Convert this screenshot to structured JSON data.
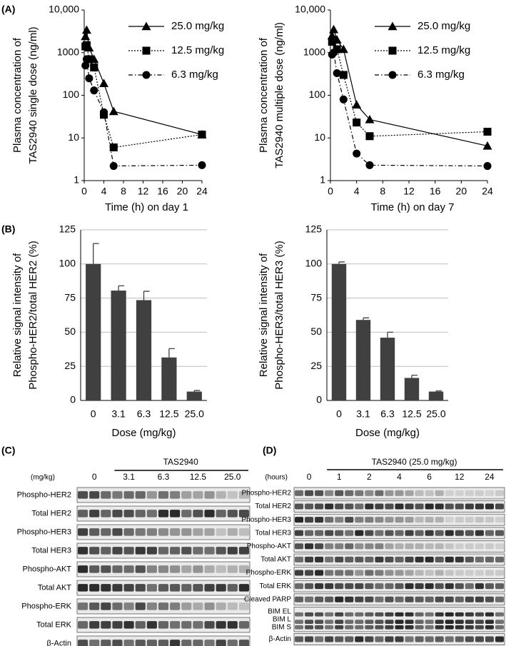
{
  "panel_labels": [
    "(A)",
    "(B)",
    "(C)",
    "(D)"
  ],
  "chart_data": [
    {
      "type": "line",
      "ylabel": [
        "Plasma concentration of",
        "TAS2940 single dose (ng/ml)"
      ],
      "xlabel": "Time (h) on day 1",
      "x": [
        0.25,
        0.5,
        1,
        2,
        4,
        6,
        24
      ],
      "xlim": [
        0,
        24
      ],
      "xticks": [
        0,
        4,
        8,
        12,
        16,
        20,
        24
      ],
      "ylim": [
        1,
        10000
      ],
      "yticks": [
        1,
        10,
        100,
        1000,
        {
          "value": 10000,
          "label": "10,000"
        }
      ],
      "log_y": true,
      "series": [
        {
          "name": "25.0 mg/kg",
          "color": "#000000",
          "marker": "triangle",
          "dash": "solid",
          "values": [
            2400,
            3400,
            1300,
            700,
            190,
            42,
            12
          ]
        },
        {
          "name": "12.5 mg/kg",
          "color": "#000000",
          "marker": "square",
          "dash": "dotted",
          "values": [
            1400,
            1500,
            700,
            450,
            35,
            6,
            12
          ]
        },
        {
          "name": "6.3 mg/kg",
          "color": "#000000",
          "marker": "circle",
          "dash": "dashdot",
          "values": [
            500,
            700,
            250,
            130,
            40,
            2.2,
            2.3
          ]
        }
      ]
    },
    {
      "type": "line",
      "ylabel": [
        "Plasma concentration of",
        "TAS2940 multiple dose (ng/ml)"
      ],
      "xlabel": "Time (h) on day 7",
      "x": [
        0.25,
        0.5,
        1,
        2,
        4,
        6,
        24
      ],
      "xlim": [
        0,
        24
      ],
      "xticks": [
        0,
        4,
        8,
        12,
        16,
        20,
        24
      ],
      "ylim": [
        1,
        10000
      ],
      "yticks": [
        1,
        10,
        100,
        1000,
        {
          "value": 10000,
          "label": "10,000"
        }
      ],
      "log_y": true,
      "series": [
        {
          "name": "25.0 mg/kg",
          "color": "#000000",
          "marker": "triangle",
          "dash": "solid",
          "values": [
            2500,
            3500,
            2000,
            1200,
            60,
            27,
            6.5
          ]
        },
        {
          "name": "12.5 mg/kg",
          "color": "#000000",
          "marker": "square",
          "dash": "dotted",
          "values": [
            1800,
            2000,
            1200,
            300,
            23,
            11,
            14
          ]
        },
        {
          "name": "6.3 mg/kg",
          "color": "#000000",
          "marker": "circle",
          "dash": "dashdot",
          "values": [
            900,
            1000,
            330,
            80,
            4.3,
            2.3,
            2.2
          ]
        }
      ]
    },
    {
      "type": "bar",
      "ylabel": [
        "Relative signal intensity of",
        "Phospho-HER2/total HER2 (%)"
      ],
      "xlabel": "Dose (mg/kg)",
      "categories": [
        "0",
        "3.1",
        "6.3",
        "12.5",
        "25.0"
      ],
      "values": [
        100,
        80.5,
        73.5,
        31.5,
        6.5
      ],
      "errors": [
        15,
        3.5,
        6.5,
        6.5,
        0.8
      ],
      "color": "#404040",
      "ylim": [
        0,
        125
      ],
      "yticks": [
        0,
        25,
        50,
        75,
        100,
        125
      ],
      "grid": true
    },
    {
      "type": "bar",
      "ylabel": [
        "Relative signal intensity of",
        "Phospho-HER3/total HER3 (%)"
      ],
      "xlabel": "Dose (mg/kg)",
      "categories": [
        "0",
        "3.1",
        "6.3",
        "12.5",
        "25.0"
      ],
      "values": [
        100,
        59,
        46,
        16.5,
        6.5
      ],
      "errors": [
        1.5,
        1.5,
        4,
        2,
        0.5
      ],
      "color": "#404040",
      "ylim": [
        0,
        125
      ],
      "yticks": [
        0,
        25,
        50,
        75,
        100,
        125
      ],
      "grid": true
    }
  ],
  "blots": [
    {
      "treatment": "TAS2940",
      "unit_label": "(mg/kg)",
      "lanes": [
        "0",
        "3.1",
        "6.3",
        "12.5",
        "25.0"
      ],
      "rows": [
        [
          "Phospho-HER2"
        ],
        [
          "Total HER2"
        ],
        [
          "Phospho-HER3"
        ],
        [
          "Total HER3"
        ],
        [
          "Phospho-AKT"
        ],
        [
          "Total AKT"
        ],
        [
          "Phospho-ERK"
        ],
        [
          "Total ERK"
        ],
        [
          "β-Actin"
        ]
      ]
    },
    {
      "treatment": "TAS2940 (25.0 mg/kg)",
      "unit_label": "(hours)",
      "lanes": [
        "0",
        "1",
        "2",
        "4",
        "6",
        "12",
        "24"
      ],
      "rows": [
        [
          "Phospho-HER2"
        ],
        [
          "Total HER2"
        ],
        [
          "Phospho-HER3"
        ],
        [
          "Total HER3"
        ],
        [
          "Phospho-AKT"
        ],
        [
          "Total AKT"
        ],
        [
          "Phospho-ERK"
        ],
        [
          "Total ERK"
        ],
        [
          "Cleaved PARP"
        ],
        [
          "BIM EL",
          "BIM L",
          "BIM S"
        ],
        [
          "β-Actin"
        ]
      ]
    }
  ]
}
